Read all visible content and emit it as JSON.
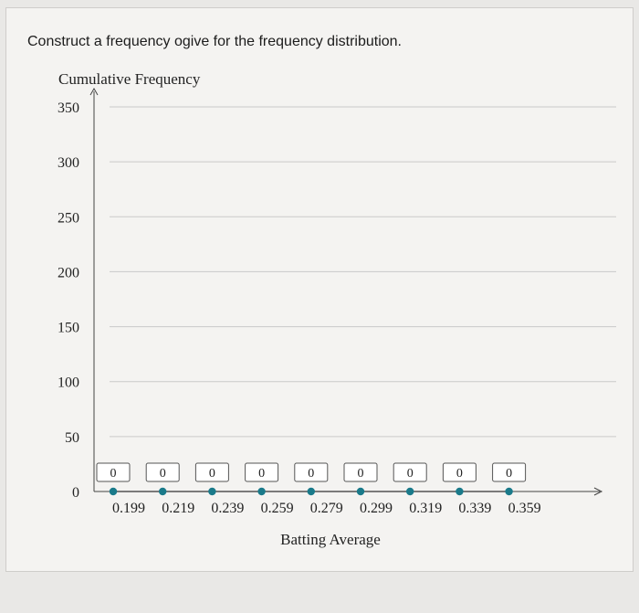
{
  "question": {
    "prompt": "Construct a frequency ogive for the frequency distribution."
  },
  "chart_data": {
    "type": "line",
    "title": "",
    "ylabel": "Cumulative Frequency",
    "xlabel": "Batting Average",
    "ylim": [
      0,
      350
    ],
    "yticks": [
      0,
      50,
      100,
      150,
      200,
      250,
      300,
      350
    ],
    "x": [
      "0.199",
      "0.219",
      "0.239",
      "0.259",
      "0.279",
      "0.299",
      "0.319",
      "0.339",
      "0.359"
    ],
    "series": [
      {
        "values": [
          0,
          0,
          0,
          0,
          0,
          0,
          0,
          0,
          0
        ]
      }
    ],
    "input_values": [
      "0",
      "0",
      "0",
      "0",
      "0",
      "0",
      "0",
      "0",
      "0"
    ],
    "grid": true,
    "colors": {
      "point": "#1a7a8a",
      "grid": "#c9c9c9",
      "axis": "#333333"
    }
  }
}
